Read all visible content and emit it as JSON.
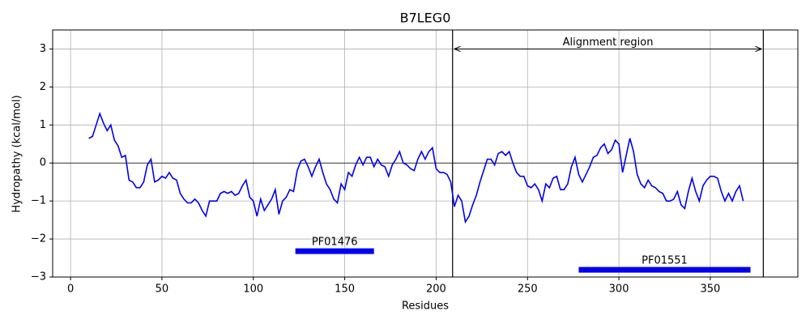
{
  "chart_data": {
    "type": "line",
    "title": "B7LEG0",
    "x_label": "Residues",
    "y_label": "Hydropathy (kcal/mol)",
    "x": [
      10,
      12,
      14,
      16,
      18,
      20,
      22,
      24,
      26,
      28,
      30,
      32,
      34,
      36,
      38,
      40,
      42,
      44,
      46,
      48,
      50,
      52,
      54,
      56,
      58,
      60,
      62,
      64,
      66,
      68,
      70,
      72,
      74,
      76,
      78,
      80,
      82,
      84,
      86,
      88,
      90,
      92,
      94,
      96,
      98,
      100,
      102,
      104,
      106,
      108,
      110,
      112,
      114,
      116,
      118,
      120,
      122,
      124,
      126,
      128,
      130,
      132,
      134,
      136,
      138,
      140,
      142,
      144,
      146,
      148,
      150,
      152,
      154,
      156,
      158,
      160,
      162,
      164,
      166,
      168,
      170,
      172,
      174,
      176,
      178,
      180,
      182,
      184,
      186,
      188,
      190,
      192,
      194,
      196,
      198,
      200,
      202,
      204,
      206,
      208,
      210,
      212,
      214,
      216,
      218,
      220,
      222,
      224,
      226,
      228,
      230,
      232,
      234,
      236,
      238,
      240,
      242,
      244,
      246,
      248,
      250,
      252,
      254,
      256,
      258,
      260,
      262,
      264,
      266,
      268,
      270,
      272,
      274,
      276,
      278,
      280,
      282,
      284,
      286,
      288,
      290,
      292,
      294,
      296,
      298,
      300,
      302,
      304,
      306,
      308,
      310,
      312,
      314,
      316,
      318,
      320,
      322,
      324,
      326,
      328,
      330,
      332,
      334,
      336,
      338,
      340,
      342,
      344,
      346,
      348,
      350,
      352,
      354,
      356,
      358,
      360,
      362,
      364,
      366,
      368
    ],
    "series": [
      {
        "name": "Hydropathy",
        "color": "#0000ee",
        "values": [
          0.65,
          0.7,
          1.0,
          1.3,
          1.05,
          0.85,
          1.0,
          0.6,
          0.45,
          0.15,
          0.2,
          -0.45,
          -0.5,
          -0.65,
          -0.65,
          -0.5,
          -0.05,
          0.1,
          -0.5,
          -0.45,
          -0.35,
          -0.4,
          -0.25,
          -0.4,
          -0.45,
          -0.8,
          -0.95,
          -1.05,
          -1.05,
          -0.95,
          -1.05,
          -1.25,
          -1.4,
          -1.0,
          -1.0,
          -1.0,
          -0.8,
          -0.75,
          -0.8,
          -0.75,
          -0.85,
          -0.8,
          -0.6,
          -0.45,
          -0.9,
          -1.0,
          -1.4,
          -0.95,
          -1.25,
          -1.1,
          -0.95,
          -0.7,
          -1.35,
          -1.0,
          -0.9,
          -0.7,
          -0.75,
          -0.2,
          0.05,
          0.1,
          -0.1,
          -0.35,
          -0.1,
          0.1,
          -0.25,
          -0.55,
          -0.7,
          -0.95,
          -1.05,
          -0.55,
          -0.7,
          -0.25,
          -0.35,
          -0.05,
          0.15,
          -0.05,
          0.15,
          0.15,
          -0.1,
          0.1,
          -0.05,
          -0.1,
          -0.35,
          -0.05,
          0.1,
          0.3,
          0.0,
          -0.05,
          -0.15,
          -0.2,
          0.1,
          0.3,
          0.1,
          0.3,
          0.4,
          -0.15,
          -0.25,
          -0.25,
          -0.3,
          -0.5,
          -1.15,
          -0.85,
          -1.0,
          -1.55,
          -1.4,
          -1.1,
          -0.85,
          -0.5,
          -0.2,
          0.1,
          0.1,
          -0.05,
          0.25,
          0.3,
          0.2,
          0.3,
          0.0,
          -0.25,
          -0.35,
          -0.35,
          -0.6,
          -0.65,
          -0.55,
          -0.7,
          -1.0,
          -0.55,
          -0.65,
          -0.4,
          -0.35,
          -0.7,
          -0.7,
          -0.55,
          -0.1,
          0.15,
          -0.3,
          -0.5,
          -0.3,
          -0.1,
          0.15,
          0.2,
          0.4,
          0.5,
          0.25,
          0.35,
          0.6,
          0.5,
          -0.25,
          0.2,
          0.65,
          0.3,
          -0.3,
          -0.55,
          -0.65,
          -0.45,
          -0.6,
          -0.65,
          -0.75,
          -0.8,
          -1.0,
          -1.0,
          -0.95,
          -0.75,
          -1.1,
          -1.2,
          -0.75,
          -0.4,
          -0.75,
          -1.0,
          -0.6,
          -0.45,
          -0.35,
          -0.35,
          -0.4,
          -0.75,
          -1.0,
          -0.8,
          -1.0,
          -0.75,
          -0.6,
          -1.0
        ]
      }
    ],
    "xlim": [
      -9.8,
      397.9
    ],
    "ylim": [
      -3,
      3.5
    ],
    "xticks": [
      0,
      50,
      100,
      150,
      200,
      250,
      300,
      350
    ],
    "yticks": [
      {
        "value": -3,
        "label": "−3"
      },
      {
        "value": -2,
        "label": "−2"
      },
      {
        "value": -1,
        "label": "−1"
      },
      0,
      1,
      2,
      3
    ],
    "grid": true,
    "hline": 0,
    "vlines": [
      209,
      379
    ],
    "region": {
      "label": "Alignment region",
      "start": 209,
      "end": 379,
      "y": 3
    },
    "domains": [
      {
        "name": "PF01476",
        "start": 123,
        "end": 166,
        "y": -2.32,
        "color": "#0000ee"
      },
      {
        "name": "PF01551",
        "start": 278,
        "end": 372,
        "y": -2.81,
        "color": "#0000ee"
      }
    ]
  }
}
